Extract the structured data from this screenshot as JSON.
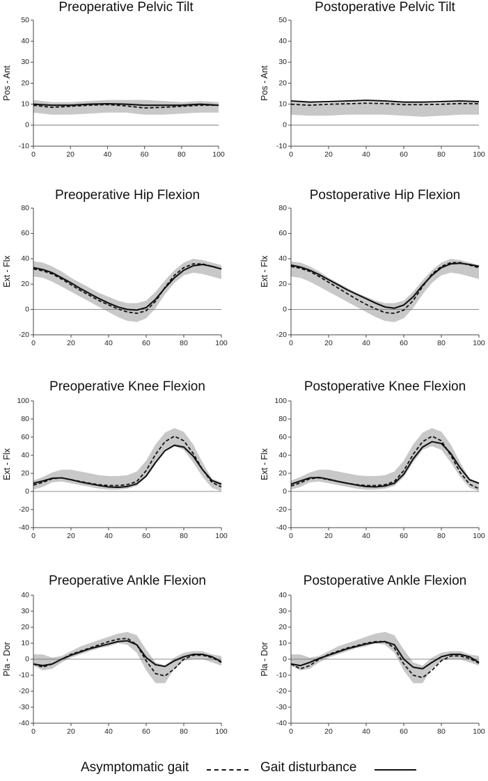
{
  "figure": {
    "legend": {
      "asymptomatic_label": "Asymptomatic gait",
      "disturbance_label": "Gait disturbance"
    }
  },
  "chart_data": [
    {
      "type": "line",
      "title": "Preoperative Pelvic Tilt",
      "ylabel": "Pos - Ant",
      "xlim": [
        0,
        100
      ],
      "ylim": [
        -10,
        50
      ],
      "yticks": [
        50,
        40,
        30,
        20,
        10,
        0,
        -10
      ],
      "xticks": [
        0,
        20,
        40,
        60,
        80,
        100
      ],
      "x": [
        0,
        10,
        20,
        30,
        40,
        50,
        60,
        70,
        80,
        90,
        100
      ],
      "band": {
        "upper": [
          12,
          11,
          11,
          11.5,
          12,
          12,
          12,
          11.5,
          11,
          11.5,
          11
        ],
        "lower": [
          6,
          5,
          5,
          5.5,
          6,
          6,
          5,
          5,
          5.5,
          6,
          6
        ]
      },
      "series": [
        {
          "style": "dashed",
          "values": [
            9.5,
            8.5,
            9,
            9.5,
            9.8,
            9.2,
            8.2,
            8.5,
            9,
            9.5,
            9.5
          ]
        },
        {
          "style": "solid",
          "values": [
            10,
            9.5,
            9.5,
            10,
            10.2,
            10,
            9.5,
            9.5,
            9.5,
            10,
            9.5
          ]
        }
      ]
    },
    {
      "type": "line",
      "title": "Postoperative Pelvic Tilt",
      "ylabel": "Pos - Ant",
      "xlim": [
        0,
        100
      ],
      "ylim": [
        -10,
        50
      ],
      "yticks": [
        50,
        40,
        30,
        20,
        10,
        0,
        -10
      ],
      "xticks": [
        0,
        20,
        40,
        60,
        80,
        100
      ],
      "x": [
        0,
        10,
        20,
        30,
        40,
        50,
        60,
        70,
        80,
        90,
        100
      ],
      "band": {
        "upper": [
          11,
          10.5,
          10.5,
          11,
          11,
          11,
          10.5,
          10.5,
          10.5,
          11,
          11
        ],
        "lower": [
          5,
          4.5,
          4.5,
          5,
          5,
          5,
          4.5,
          4,
          4.5,
          5,
          5
        ]
      },
      "series": [
        {
          "style": "dashed",
          "values": [
            10,
            9.5,
            10,
            10.2,
            10.5,
            10.3,
            9.8,
            9.8,
            10,
            10.3,
            10.2
          ]
        },
        {
          "style": "solid",
          "values": [
            11.5,
            11,
            11.2,
            11.5,
            11.8,
            11.5,
            11,
            11,
            11.2,
            11.5,
            11.2
          ]
        }
      ]
    },
    {
      "type": "line",
      "title": "Preoperative Hip Flexion",
      "ylabel": "Ext - Flx",
      "xlim": [
        0,
        100
      ],
      "ylim": [
        -20,
        80
      ],
      "yticks": [
        80,
        60,
        40,
        20,
        0,
        -20
      ],
      "xticks": [
        0,
        20,
        40,
        60,
        80,
        100
      ],
      "x": [
        0,
        5,
        10,
        15,
        20,
        25,
        30,
        35,
        40,
        45,
        50,
        55,
        60,
        65,
        70,
        75,
        80,
        85,
        90,
        95,
        100
      ],
      "band": {
        "upper": [
          38,
          37,
          34,
          30,
          25,
          21,
          17,
          13,
          10,
          7,
          5,
          5,
          7,
          14,
          23,
          31,
          37,
          40,
          39,
          37,
          35
        ],
        "lower": [
          26,
          25,
          22,
          18,
          14,
          10,
          6,
          2,
          -2,
          -6,
          -9,
          -10,
          -7,
          1,
          12,
          21,
          27,
          29,
          28,
          26,
          24
        ]
      },
      "series": [
        {
          "style": "dashed",
          "values": [
            32,
            30.5,
            28,
            24,
            19.5,
            15,
            11,
            7,
            3.5,
            0.5,
            -2,
            -3,
            -1,
            6.5,
            17.5,
            27,
            33,
            36,
            36,
            34,
            32
          ]
        },
        {
          "style": "solid",
          "values": [
            33,
            31.5,
            29,
            25,
            21,
            16.5,
            12.5,
            8.5,
            5,
            2,
            0,
            -0.5,
            1.5,
            8,
            17,
            25,
            31,
            34.5,
            35.5,
            34,
            32
          ]
        }
      ]
    },
    {
      "type": "line",
      "title": "Postoperative Hip Flexion",
      "ylabel": "Ext - Flx",
      "xlim": [
        0,
        100
      ],
      "ylim": [
        -20,
        80
      ],
      "yticks": [
        80,
        60,
        40,
        20,
        0,
        -20
      ],
      "xticks": [
        0,
        20,
        40,
        60,
        80,
        100
      ],
      "x": [
        0,
        5,
        10,
        15,
        20,
        25,
        30,
        35,
        40,
        45,
        50,
        55,
        60,
        65,
        70,
        75,
        80,
        85,
        90,
        95,
        100
      ],
      "band": {
        "upper": [
          38,
          37,
          34,
          30,
          25,
          21,
          17,
          13,
          10,
          7,
          5,
          5,
          7,
          14,
          23,
          31,
          37,
          40,
          39,
          37,
          35
        ],
        "lower": [
          26,
          25,
          22,
          18,
          14,
          10,
          6,
          2,
          -2,
          -6,
          -9,
          -10,
          -7,
          1,
          12,
          21,
          27,
          29,
          28,
          26,
          24
        ]
      },
      "series": [
        {
          "style": "dashed",
          "values": [
            34,
            32.5,
            30,
            26,
            21.5,
            17,
            12.5,
            8,
            4,
            0.5,
            -2.5,
            -3,
            -0.5,
            7,
            18,
            28,
            34,
            37,
            37,
            35,
            33
          ]
        },
        {
          "style": "solid",
          "values": [
            35,
            33.5,
            31,
            27.5,
            23.5,
            19.5,
            15.5,
            12,
            8.5,
            5,
            2,
            1,
            3.5,
            10,
            19,
            27,
            33,
            36,
            36.5,
            35.5,
            34
          ]
        }
      ]
    },
    {
      "type": "line",
      "title": "Preoperative Knee Flexion",
      "ylabel": "Ext - Flx",
      "xlim": [
        0,
        100
      ],
      "ylim": [
        -40,
        100
      ],
      "yticks": [
        100,
        80,
        60,
        40,
        20,
        0,
        -20,
        -40
      ],
      "xticks": [
        0,
        20,
        40,
        60,
        80,
        100
      ],
      "x": [
        0,
        5,
        10,
        15,
        20,
        25,
        30,
        35,
        40,
        45,
        50,
        55,
        60,
        65,
        70,
        75,
        80,
        85,
        90,
        95,
        100
      ],
      "band": {
        "upper": [
          12,
          16,
          21,
          24,
          24,
          22,
          20,
          18,
          17,
          17,
          18,
          22,
          34,
          52,
          65,
          70,
          66,
          52,
          32,
          14,
          10
        ],
        "lower": [
          2,
          5,
          10,
          11,
          9,
          7,
          5,
          3,
          2,
          2,
          3,
          6,
          16,
          32,
          46,
          50,
          46,
          32,
          16,
          4,
          0
        ]
      },
      "series": [
        {
          "style": "dashed",
          "values": [
            7,
            10,
            14,
            15,
            13,
            11,
            9,
            7.5,
            6.5,
            6.5,
            7.5,
            11,
            23,
            41,
            55,
            61,
            56,
            42,
            24,
            10,
            5
          ]
        },
        {
          "style": "solid",
          "values": [
            9,
            11.5,
            14.5,
            15,
            13,
            10.5,
            8.5,
            6.5,
            5,
            4.5,
            5.5,
            8.5,
            17,
            32,
            45,
            51,
            49,
            39,
            24,
            12,
            8
          ]
        }
      ]
    },
    {
      "type": "line",
      "title": "Postoperative Knee Flexion",
      "ylabel": "Ext - Flx",
      "xlim": [
        0,
        100
      ],
      "ylim": [
        -40,
        100
      ],
      "yticks": [
        100,
        80,
        60,
        40,
        20,
        0,
        -20,
        -40
      ],
      "xticks": [
        0,
        20,
        40,
        60,
        80,
        100
      ],
      "x": [
        0,
        5,
        10,
        15,
        20,
        25,
        30,
        35,
        40,
        45,
        50,
        55,
        60,
        65,
        70,
        75,
        80,
        85,
        90,
        95,
        100
      ],
      "band": {
        "upper": [
          12,
          16,
          21,
          24,
          24,
          22,
          20,
          18,
          17,
          17,
          18,
          22,
          34,
          52,
          65,
          70,
          66,
          52,
          32,
          14,
          10
        ],
        "lower": [
          2,
          5,
          10,
          11,
          9,
          7,
          5,
          3,
          2,
          2,
          3,
          6,
          16,
          32,
          46,
          50,
          46,
          32,
          16,
          4,
          0
        ]
      },
      "series": [
        {
          "style": "dashed",
          "values": [
            6,
            9.5,
            14,
            15,
            13,
            11,
            9,
            7.5,
            6.5,
            6.5,
            7.5,
            11,
            23,
            41,
            55,
            61,
            56,
            40,
            21,
            8,
            3
          ]
        },
        {
          "style": "solid",
          "values": [
            8,
            11.5,
            15,
            15.5,
            13.5,
            11,
            9,
            7,
            5.5,
            5,
            6,
            9,
            19,
            36,
            49,
            55,
            53,
            42,
            26,
            13,
            9
          ]
        }
      ]
    },
    {
      "type": "line",
      "title": "Preoperative Ankle Flexion",
      "ylabel": "Pla - Dor",
      "xlim": [
        0,
        100
      ],
      "ylim": [
        -40,
        40
      ],
      "yticks": [
        40,
        30,
        20,
        10,
        0,
        -10,
        -20,
        -30,
        -40
      ],
      "xticks": [
        0,
        20,
        40,
        60,
        80,
        100
      ],
      "x": [
        0,
        5,
        10,
        15,
        20,
        25,
        30,
        35,
        40,
        45,
        50,
        55,
        60,
        65,
        70,
        75,
        80,
        85,
        90,
        95,
        100
      ],
      "band": {
        "upper": [
          3,
          3,
          1,
          2,
          5,
          8,
          10,
          12,
          14,
          16,
          17,
          15,
          6,
          -2,
          -4,
          1,
          4,
          5,
          5,
          3,
          2
        ],
        "lower": [
          -4,
          -7,
          -6,
          -2,
          1,
          3,
          5,
          7,
          8,
          10,
          9,
          4,
          -7,
          -15,
          -15,
          -6,
          -1,
          0,
          0,
          -2,
          -4
        ]
      },
      "series": [
        {
          "style": "dashed",
          "values": [
            -3,
            -5,
            -3,
            0,
            3,
            5,
            7,
            9,
            11,
            12.5,
            13,
            9,
            -1,
            -9,
            -10.5,
            -6,
            0,
            2.5,
            2.5,
            1,
            -2
          ]
        },
        {
          "style": "solid",
          "values": [
            -3,
            -4,
            -3,
            0,
            2.5,
            4.5,
            6.5,
            8,
            9.5,
            11,
            11.5,
            9,
            1,
            -3.5,
            -4.5,
            -1,
            1.5,
            3,
            3,
            1.5,
            -1.5
          ]
        }
      ]
    },
    {
      "type": "line",
      "title": "Postoperative Ankle Flexion",
      "ylabel": "Pla - Dor",
      "xlim": [
        0,
        100
      ],
      "ylim": [
        -40,
        40
      ],
      "yticks": [
        40,
        30,
        20,
        10,
        0,
        -10,
        -20,
        -30,
        -40
      ],
      "xticks": [
        0,
        20,
        40,
        60,
        80,
        100
      ],
      "x": [
        0,
        5,
        10,
        15,
        20,
        25,
        30,
        35,
        40,
        45,
        50,
        55,
        60,
        65,
        70,
        75,
        80,
        85,
        90,
        95,
        100
      ],
      "band": {
        "upper": [
          3,
          3,
          1,
          2,
          5,
          8,
          10,
          12,
          14,
          16,
          17,
          15,
          6,
          -2,
          -4,
          1,
          4,
          5,
          5,
          3,
          2
        ],
        "lower": [
          -4,
          -7,
          -6,
          -2,
          1,
          3,
          5,
          7,
          8,
          10,
          9,
          4,
          -7,
          -15,
          -15,
          -6,
          -1,
          0,
          0,
          -2,
          -4
        ]
      },
      "series": [
        {
          "style": "dashed",
          "values": [
            -3,
            -6,
            -4,
            0,
            3,
            5,
            7,
            8.5,
            10,
            11,
            11,
            7,
            -3,
            -10,
            -11.5,
            -7,
            -1,
            2,
            2,
            0.5,
            -2.5
          ]
        },
        {
          "style": "solid",
          "values": [
            -3,
            -4,
            -2,
            0.5,
            2.5,
            4.5,
            6.5,
            8,
            9.5,
            10.5,
            11,
            9,
            0,
            -5,
            -6,
            -2,
            1.5,
            3,
            3,
            1.5,
            -2
          ]
        }
      ]
    }
  ]
}
